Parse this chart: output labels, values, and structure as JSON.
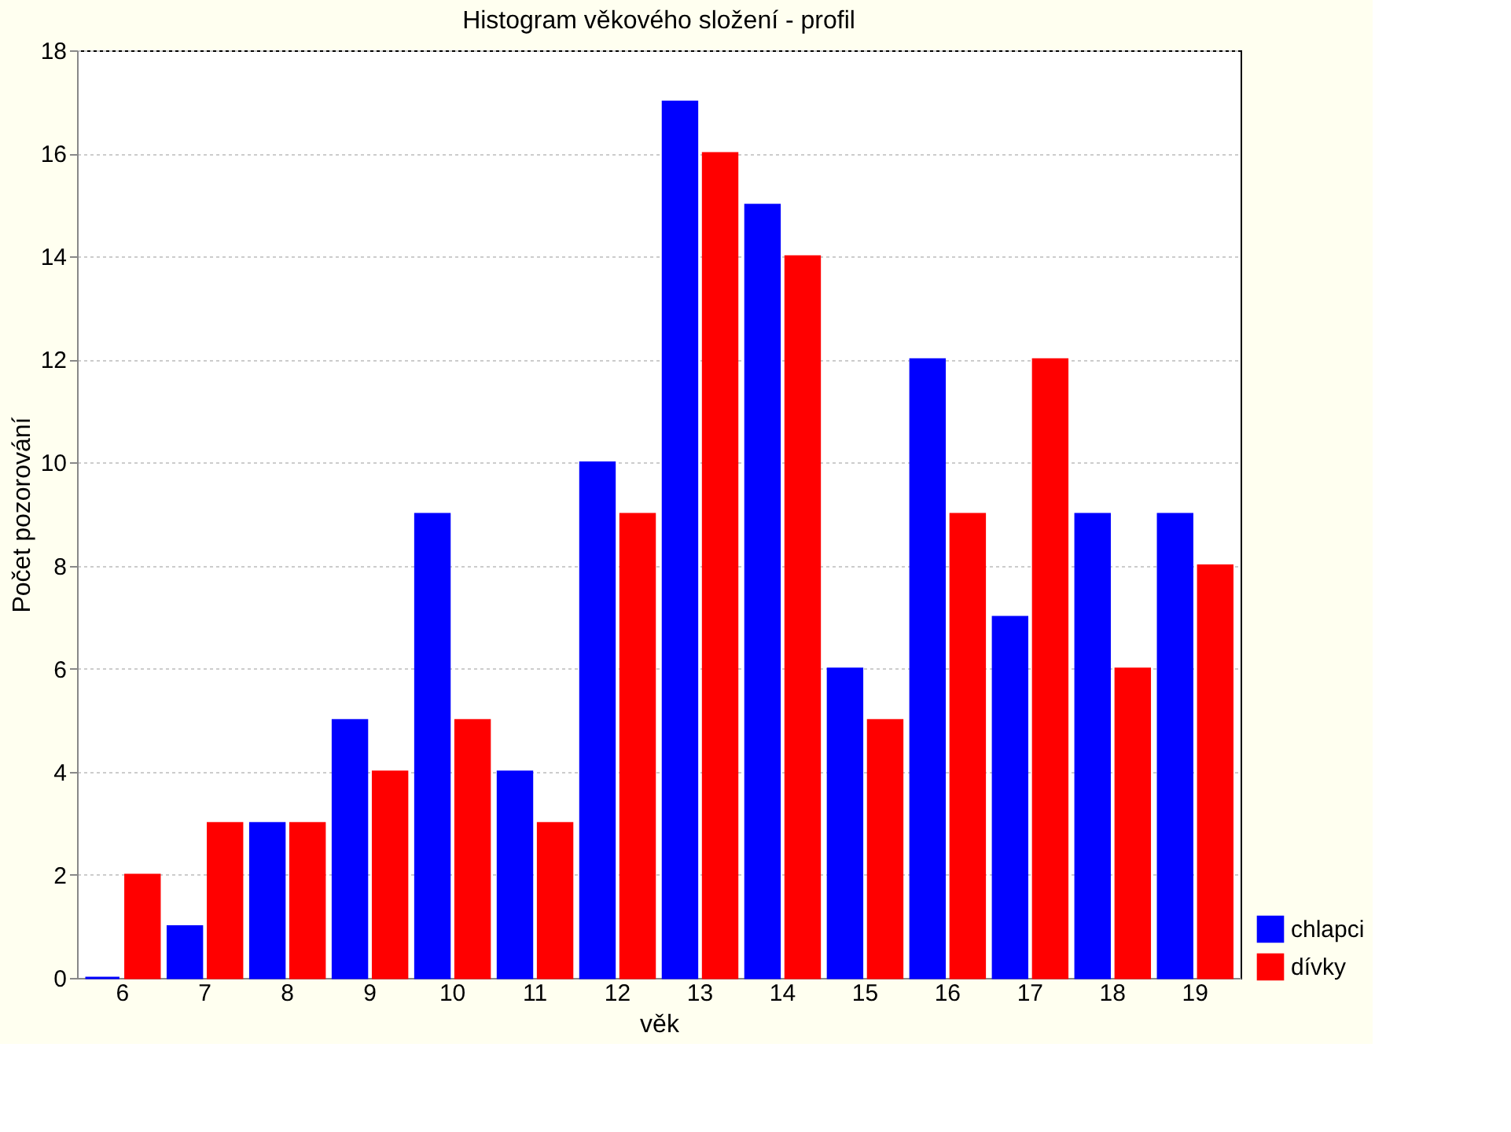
{
  "chart_data": {
    "type": "bar",
    "title": "Histogram věkového složení - profil",
    "xlabel": "věk",
    "ylabel": "Počet pozorování",
    "categories": [
      "6",
      "7",
      "8",
      "9",
      "10",
      "11",
      "12",
      "13",
      "14",
      "15",
      "16",
      "17",
      "18",
      "19"
    ],
    "series": [
      {
        "name": "chlapci",
        "color": "#0000ff",
        "values": [
          0,
          1,
          3,
          5,
          9,
          4,
          10,
          17,
          15,
          6,
          12,
          7,
          9,
          9
        ]
      },
      {
        "name": "dívky",
        "color": "#ff0000",
        "values": [
          2,
          3,
          3,
          4,
          5,
          3,
          9,
          16,
          14,
          5,
          9,
          12,
          6,
          8
        ]
      }
    ],
    "ylim": [
      0,
      18
    ],
    "yticks": [
      0,
      2,
      4,
      6,
      8,
      10,
      12,
      14,
      16,
      18
    ],
    "grid": "y",
    "legend": "bottom right"
  }
}
